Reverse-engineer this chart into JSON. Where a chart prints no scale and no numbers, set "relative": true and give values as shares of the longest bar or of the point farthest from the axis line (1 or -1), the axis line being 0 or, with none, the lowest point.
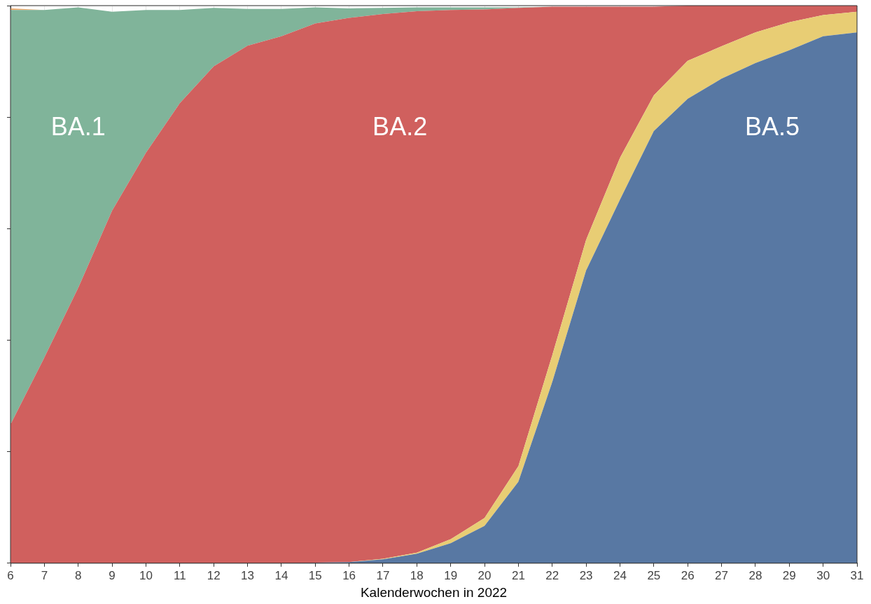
{
  "chart_data": {
    "type": "area",
    "stacked": true,
    "relative": true,
    "xlabel": "Kalenderwochen in 2022",
    "grid": true,
    "legend": false,
    "tick_labels": "x",
    "categories": [
      "6",
      "7",
      "8",
      "9",
      "10",
      "11",
      "12",
      "13",
      "14",
      "15",
      "16",
      "17",
      "18",
      "19",
      "20",
      "21",
      "22",
      "23",
      "24",
      "25",
      "26",
      "27",
      "28",
      "29",
      "30",
      "31"
    ],
    "series": [
      {
        "name": "BA.5",
        "color": "#5878a3",
        "values": [
          0,
          0,
          0,
          0,
          0,
          0,
          0,
          0,
          0,
          0.001,
          0.002,
          0.007,
          0.017,
          0.036,
          0.067,
          0.146,
          0.325,
          0.525,
          0.652,
          0.775,
          0.833,
          0.869,
          0.897,
          0.92,
          0.945,
          0.952
        ]
      },
      {
        "color": "#e8cd74",
        "values": [
          0,
          0,
          0,
          0,
          0,
          0,
          0,
          0,
          0,
          0,
          0,
          0.001,
          0.002,
          0.007,
          0.014,
          0.028,
          0.048,
          0.055,
          0.075,
          0.064,
          0.068,
          0.058,
          0.055,
          0.05,
          0.038,
          0.037
        ]
      },
      {
        "name": "BA.2",
        "color": "#d0605e",
        "values": [
          0.249,
          0.369,
          0.494,
          0.632,
          0.736,
          0.825,
          0.891,
          0.928,
          0.945,
          0.967,
          0.976,
          0.977,
          0.971,
          0.949,
          0.912,
          0.822,
          0.625,
          0.418,
          0.271,
          0.159,
          0.099,
          0.073,
          0.048,
          0.03,
          0.017,
          0.011
        ]
      },
      {
        "name": "BA.1",
        "color": "#80b49a",
        "values": [
          0.743,
          0.623,
          0.503,
          0.357,
          0.256,
          0.167,
          0.105,
          0.066,
          0.049,
          0.029,
          0.017,
          0.011,
          0.007,
          0.005,
          0.004,
          0.001,
          0,
          0,
          0,
          0,
          0,
          0,
          0,
          0,
          0,
          0
        ]
      },
      {
        "color": "#f0a868",
        "values": [
          0.003,
          0,
          0,
          0,
          0,
          0,
          0,
          0,
          0,
          0,
          0,
          0,
          0,
          0,
          0,
          0,
          0,
          0,
          0,
          0,
          0,
          0,
          0,
          0,
          0,
          0
        ]
      }
    ]
  }
}
